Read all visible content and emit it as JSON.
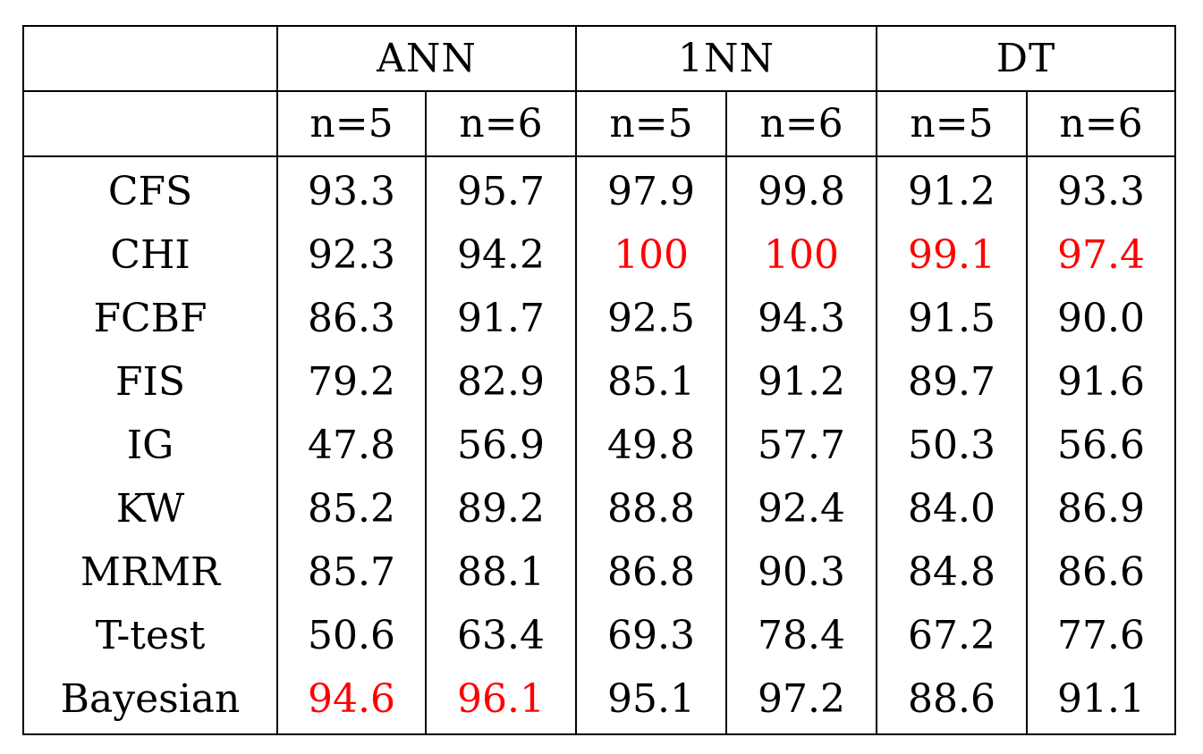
{
  "header": {
    "groups": [
      "ANN",
      "1NN",
      "DT"
    ],
    "subheaders": [
      "n=5",
      "n=6",
      "n=5",
      "n=6",
      "n=5",
      "n=6"
    ]
  },
  "rows": [
    {
      "method": "CFS",
      "values": [
        "93.3",
        "95.7",
        "97.9",
        "99.8",
        "91.2",
        "93.3"
      ]
    },
    {
      "method": "CHI",
      "values": [
        "92.3",
        "94.2",
        "100",
        "100",
        "99.1",
        "97.4"
      ]
    },
    {
      "method": "FCBF",
      "values": [
        "86.3",
        "91.7",
        "92.5",
        "94.3",
        "91.5",
        "90.0"
      ]
    },
    {
      "method": "FIS",
      "values": [
        "79.2",
        "82.9",
        "85.1",
        "91.2",
        "89.7",
        "91.6"
      ]
    },
    {
      "method": "IG",
      "values": [
        "47.8",
        "56.9",
        "49.8",
        "57.7",
        "50.3",
        "56.6"
      ]
    },
    {
      "method": "KW",
      "values": [
        "85.2",
        "89.2",
        "88.8",
        "92.4",
        "84.0",
        "86.9"
      ]
    },
    {
      "method": "MRMR",
      "values": [
        "85.7",
        "88.1",
        "86.8",
        "90.3",
        "84.8",
        "86.6"
      ]
    },
    {
      "method": "T-test",
      "values": [
        "50.6",
        "63.4",
        "69.3",
        "78.4",
        "67.2",
        "77.6"
      ]
    },
    {
      "method": "Bayesian",
      "values": [
        "94.6",
        "96.1",
        "95.1",
        "97.2",
        "88.6",
        "91.1"
      ]
    }
  ],
  "highlight_color": "#ff0000"
}
